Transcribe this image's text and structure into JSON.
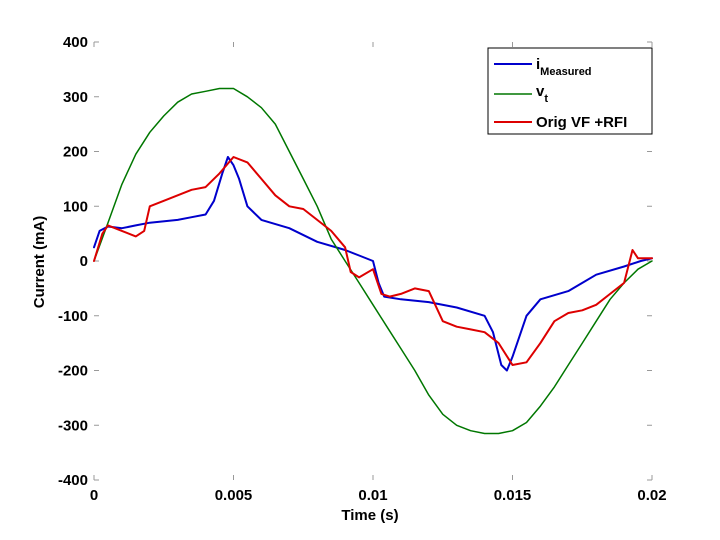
{
  "chart_data": {
    "type": "line",
    "title": "",
    "xlabel": "Time (s)",
    "ylabel": "Current (mA)",
    "xlim": [
      0,
      0.02
    ],
    "ylim": [
      -400,
      400
    ],
    "xticks": [
      0,
      0.005,
      0.01,
      0.015,
      0.02
    ],
    "xtick_labels": [
      "0",
      "0.005",
      "0.01",
      "0.015",
      "0.02"
    ],
    "yticks": [
      400,
      300,
      200,
      100,
      0,
      -100,
      -200,
      -300,
      -400
    ],
    "ytick_labels": [
      "400",
      "300",
      "200",
      "100",
      "0",
      "-100",
      "-200",
      "-300",
      "-400"
    ],
    "grid": false,
    "legend_position": "top-right",
    "series": [
      {
        "name": "iMeasured",
        "legend_main": "i",
        "legend_sub": "Measured",
        "color": "#0000cc",
        "points": [
          [
            0.0,
            25
          ],
          [
            0.0002,
            55
          ],
          [
            0.0005,
            63
          ],
          [
            0.001,
            60
          ],
          [
            0.0015,
            65
          ],
          [
            0.002,
            70
          ],
          [
            0.003,
            75
          ],
          [
            0.0035,
            80
          ],
          [
            0.004,
            85
          ],
          [
            0.0043,
            110
          ],
          [
            0.0046,
            160
          ],
          [
            0.0048,
            190
          ],
          [
            0.005,
            175
          ],
          [
            0.0052,
            150
          ],
          [
            0.0055,
            100
          ],
          [
            0.006,
            75
          ],
          [
            0.007,
            60
          ],
          [
            0.008,
            35
          ],
          [
            0.009,
            20
          ],
          [
            0.0095,
            10
          ],
          [
            0.01,
            0
          ],
          [
            0.0102,
            -40
          ],
          [
            0.0104,
            -65
          ],
          [
            0.011,
            -70
          ],
          [
            0.012,
            -75
          ],
          [
            0.013,
            -85
          ],
          [
            0.014,
            -100
          ],
          [
            0.0143,
            -130
          ],
          [
            0.0146,
            -190
          ],
          [
            0.0148,
            -200
          ],
          [
            0.015,
            -175
          ],
          [
            0.0155,
            -100
          ],
          [
            0.016,
            -70
          ],
          [
            0.017,
            -55
          ],
          [
            0.0175,
            -40
          ],
          [
            0.018,
            -25
          ],
          [
            0.019,
            -10
          ],
          [
            0.0196,
            0
          ],
          [
            0.02,
            5
          ]
        ]
      },
      {
        "name": "vt",
        "legend_main": "v",
        "legend_sub": "t",
        "color": "#007700",
        "points": [
          [
            0.0,
            0
          ],
          [
            0.0005,
            70
          ],
          [
            0.001,
            140
          ],
          [
            0.0015,
            195
          ],
          [
            0.002,
            235
          ],
          [
            0.0025,
            265
          ],
          [
            0.003,
            290
          ],
          [
            0.0035,
            305
          ],
          [
            0.004,
            310
          ],
          [
            0.0045,
            315
          ],
          [
            0.005,
            315
          ],
          [
            0.0055,
            300
          ],
          [
            0.006,
            280
          ],
          [
            0.0065,
            250
          ],
          [
            0.007,
            200
          ],
          [
            0.0075,
            150
          ],
          [
            0.008,
            100
          ],
          [
            0.0085,
            40
          ],
          [
            0.009,
            0
          ],
          [
            0.0095,
            -40
          ],
          [
            0.01,
            -80
          ],
          [
            0.0105,
            -120
          ],
          [
            0.011,
            -160
          ],
          [
            0.0115,
            -200
          ],
          [
            0.012,
            -245
          ],
          [
            0.0125,
            -280
          ],
          [
            0.013,
            -300
          ],
          [
            0.0135,
            -310
          ],
          [
            0.014,
            -315
          ],
          [
            0.0145,
            -315
          ],
          [
            0.015,
            -310
          ],
          [
            0.0155,
            -295
          ],
          [
            0.016,
            -265
          ],
          [
            0.0165,
            -230
          ],
          [
            0.017,
            -190
          ],
          [
            0.0175,
            -150
          ],
          [
            0.018,
            -110
          ],
          [
            0.0185,
            -70
          ],
          [
            0.019,
            -40
          ],
          [
            0.0195,
            -15
          ],
          [
            0.02,
            0
          ]
        ]
      },
      {
        "name": "Orig VF +RFI",
        "legend_main": "Orig VF +RFI",
        "legend_sub": "",
        "color": "#dd0000",
        "points": [
          [
            0.0,
            0
          ],
          [
            0.0003,
            50
          ],
          [
            0.0005,
            65
          ],
          [
            0.001,
            55
          ],
          [
            0.0015,
            45
          ],
          [
            0.0018,
            55
          ],
          [
            0.002,
            100
          ],
          [
            0.0025,
            110
          ],
          [
            0.003,
            120
          ],
          [
            0.0035,
            130
          ],
          [
            0.004,
            135
          ],
          [
            0.0045,
            160
          ],
          [
            0.005,
            190
          ],
          [
            0.0055,
            180
          ],
          [
            0.006,
            150
          ],
          [
            0.0065,
            120
          ],
          [
            0.007,
            100
          ],
          [
            0.0075,
            95
          ],
          [
            0.008,
            75
          ],
          [
            0.0085,
            55
          ],
          [
            0.009,
            25
          ],
          [
            0.0092,
            -20
          ],
          [
            0.0095,
            -30
          ],
          [
            0.01,
            -15
          ],
          [
            0.0103,
            -60
          ],
          [
            0.0106,
            -65
          ],
          [
            0.011,
            -60
          ],
          [
            0.0115,
            -50
          ],
          [
            0.012,
            -55
          ],
          [
            0.0125,
            -110
          ],
          [
            0.013,
            -120
          ],
          [
            0.0135,
            -125
          ],
          [
            0.014,
            -130
          ],
          [
            0.0145,
            -150
          ],
          [
            0.015,
            -190
          ],
          [
            0.0155,
            -185
          ],
          [
            0.016,
            -150
          ],
          [
            0.0165,
            -110
          ],
          [
            0.017,
            -95
          ],
          [
            0.0175,
            -90
          ],
          [
            0.018,
            -80
          ],
          [
            0.0185,
            -60
          ],
          [
            0.019,
            -40
          ],
          [
            0.0193,
            20
          ],
          [
            0.0195,
            5
          ],
          [
            0.02,
            5
          ]
        ]
      }
    ]
  }
}
